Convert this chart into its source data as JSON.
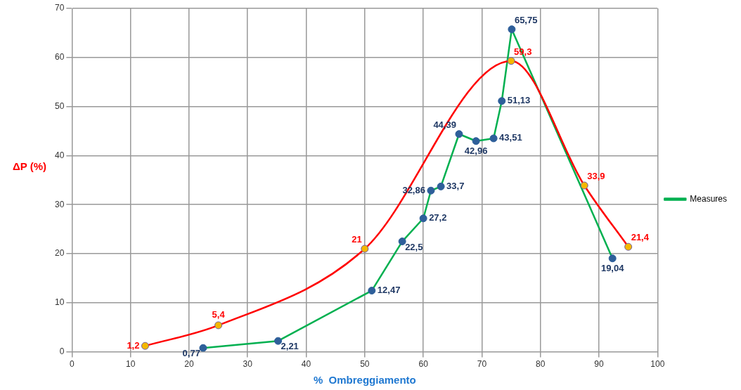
{
  "chart_data": {
    "type": "line",
    "xlabel": "%  Ombreggiamento",
    "ylabel": "ΔP (%)",
    "xlim": [
      0,
      100
    ],
    "xticks": [
      0,
      10,
      20,
      30,
      40,
      50,
      60,
      70,
      80,
      90,
      100
    ],
    "ylim": [
      0,
      70
    ],
    "yticks": [
      0,
      10,
      20,
      30,
      40,
      50,
      60,
      70
    ],
    "grid": true,
    "legend": "right",
    "marker": "circle",
    "series": [
      {
        "color": "#ff0000",
        "x": [
          12.5,
          25,
          50,
          75,
          87.5,
          95
        ],
        "values": [
          1.2,
          5.4,
          21,
          59.3,
          33.9,
          21.4
        ],
        "value_labels": [
          "1,2",
          "5,4",
          "21",
          "59,3",
          "33,9",
          "21,4"
        ]
      },
      {
        "name": "Measures",
        "color": "#00b050",
        "x": [
          22.4,
          35.2,
          51.2,
          56.4,
          60,
          61.3,
          63,
          66.1,
          69,
          72,
          73.4,
          75.1,
          92.3
        ],
        "values": [
          0.77,
          2.21,
          12.47,
          22.5,
          27.2,
          32.86,
          33.7,
          44.39,
          42.96,
          43.51,
          51.13,
          65.75,
          19.04
        ],
        "value_labels": [
          "0,77",
          "2,21",
          "12,47",
          "22,5",
          "27,2",
          "32,86",
          "33,7",
          "44,39",
          "42,96",
          "43,51",
          "51,13",
          "65,75",
          "19,04"
        ]
      }
    ]
  }
}
